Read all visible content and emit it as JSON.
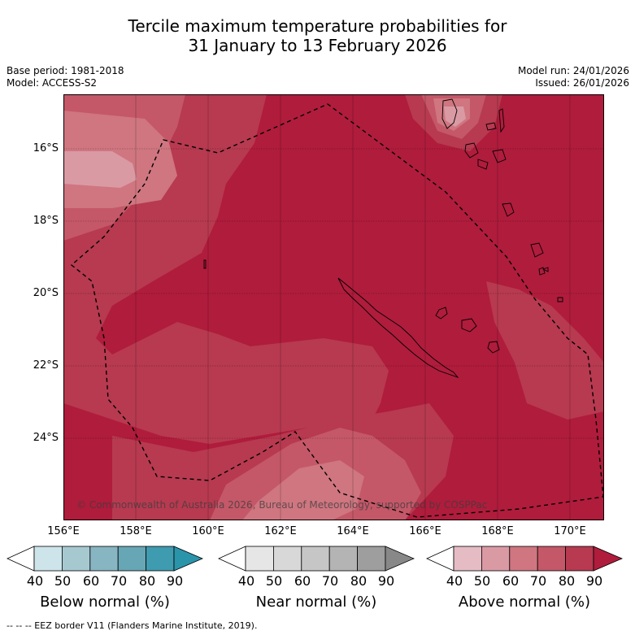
{
  "title": {
    "line1": "Tercile maximum temperature probabilities for",
    "line2": "31 January to 13 February 2026"
  },
  "meta": {
    "base_period": "Base period: 1981-2018",
    "model": "Model: ACCESS-S2",
    "model_run": "Model run: 24/01/2026",
    "issued": "Issued: 26/01/2026"
  },
  "axes": {
    "lat_labels": [
      "16°S",
      "18°S",
      "20°S",
      "22°S",
      "24°S"
    ],
    "lon_labels": [
      "156°E",
      "158°E",
      "160°E",
      "162°E",
      "164°E",
      "166°E",
      "168°E",
      "170°E"
    ]
  },
  "copyright": "© Commonwealth of Australia 2026, Bureau of Meteorology, supported by COSPPac",
  "colorbars": [
    {
      "title": "Below normal (%)",
      "ticks": [
        "40",
        "50",
        "60",
        "70",
        "80",
        "90"
      ],
      "colors": [
        "#ffffff",
        "#cde4ea",
        "#a6c9d0",
        "#87b5c1",
        "#67a6b5",
        "#3f9baf",
        "#2a95aa"
      ]
    },
    {
      "title": "Near normal (%)",
      "ticks": [
        "40",
        "50",
        "60",
        "70",
        "80",
        "90"
      ],
      "colors": [
        "#ffffff",
        "#e6e6e6",
        "#d8d8d8",
        "#c6c6c6",
        "#b4b4b4",
        "#9e9e9e",
        "#888888"
      ]
    },
    {
      "title": "Above normal (%)",
      "ticks": [
        "40",
        "50",
        "60",
        "70",
        "80",
        "90"
      ],
      "colors": [
        "#ffffff",
        "#e6bcc4",
        "#da9aa4",
        "#cf7680",
        "#c45868",
        "#b73a50",
        "#b01c3c"
      ]
    }
  ],
  "footnote": "--  --  -- EEZ border V11 (Flanders Marine Institute, 2019).",
  "colors": {
    "p90": "#b01c3c",
    "p80": "#b73a50",
    "p70": "#c45868",
    "p60": "#cf7680",
    "p50": "#da9aa4"
  }
}
